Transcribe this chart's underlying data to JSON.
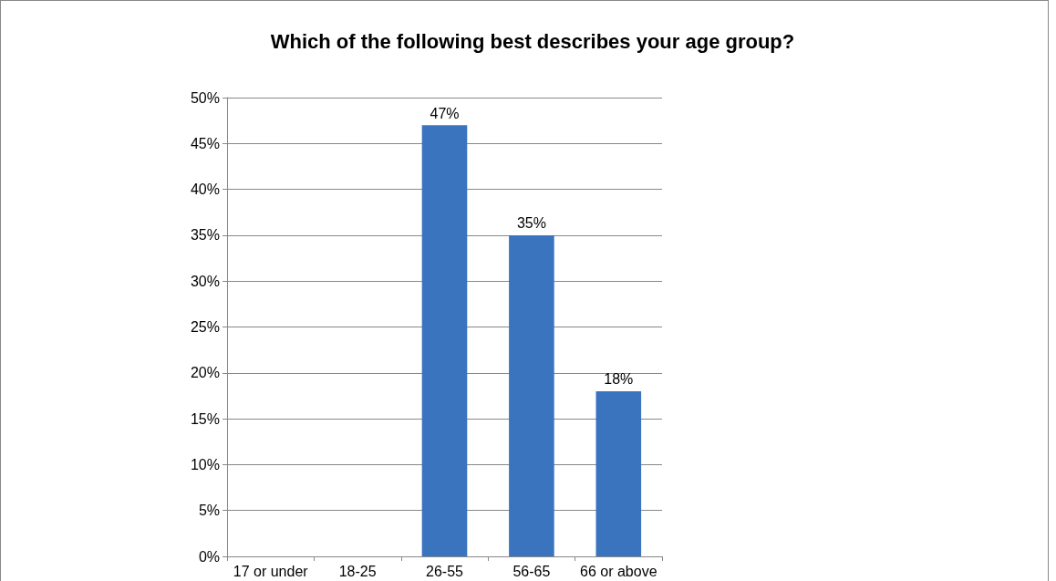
{
  "chart_data": {
    "type": "bar",
    "title": "Which of the following best describes your age group?",
    "categories": [
      "17 or under",
      "18-25",
      "26-55",
      "56-65",
      "66 or above"
    ],
    "values": [
      0,
      0,
      47,
      35,
      18
    ],
    "value_labels": [
      null,
      null,
      "47%",
      "35%",
      "18%"
    ],
    "color": "#3a74bf",
    "ylim": [
      0,
      50
    ],
    "yticks": [
      {
        "value": 0,
        "label": "0%"
      },
      {
        "value": 5,
        "label": "5%"
      },
      {
        "value": 10,
        "label": "10%"
      },
      {
        "value": 15,
        "label": "15%"
      },
      {
        "value": 20,
        "label": "20%"
      },
      {
        "value": 25,
        "label": "25%"
      },
      {
        "value": 30,
        "label": "30%"
      },
      {
        "value": 35,
        "label": "35%"
      },
      {
        "value": 40,
        "label": "40%"
      },
      {
        "value": 45,
        "label": "45%"
      },
      {
        "value": 50,
        "label": "50%"
      }
    ],
    "grid": "y"
  }
}
